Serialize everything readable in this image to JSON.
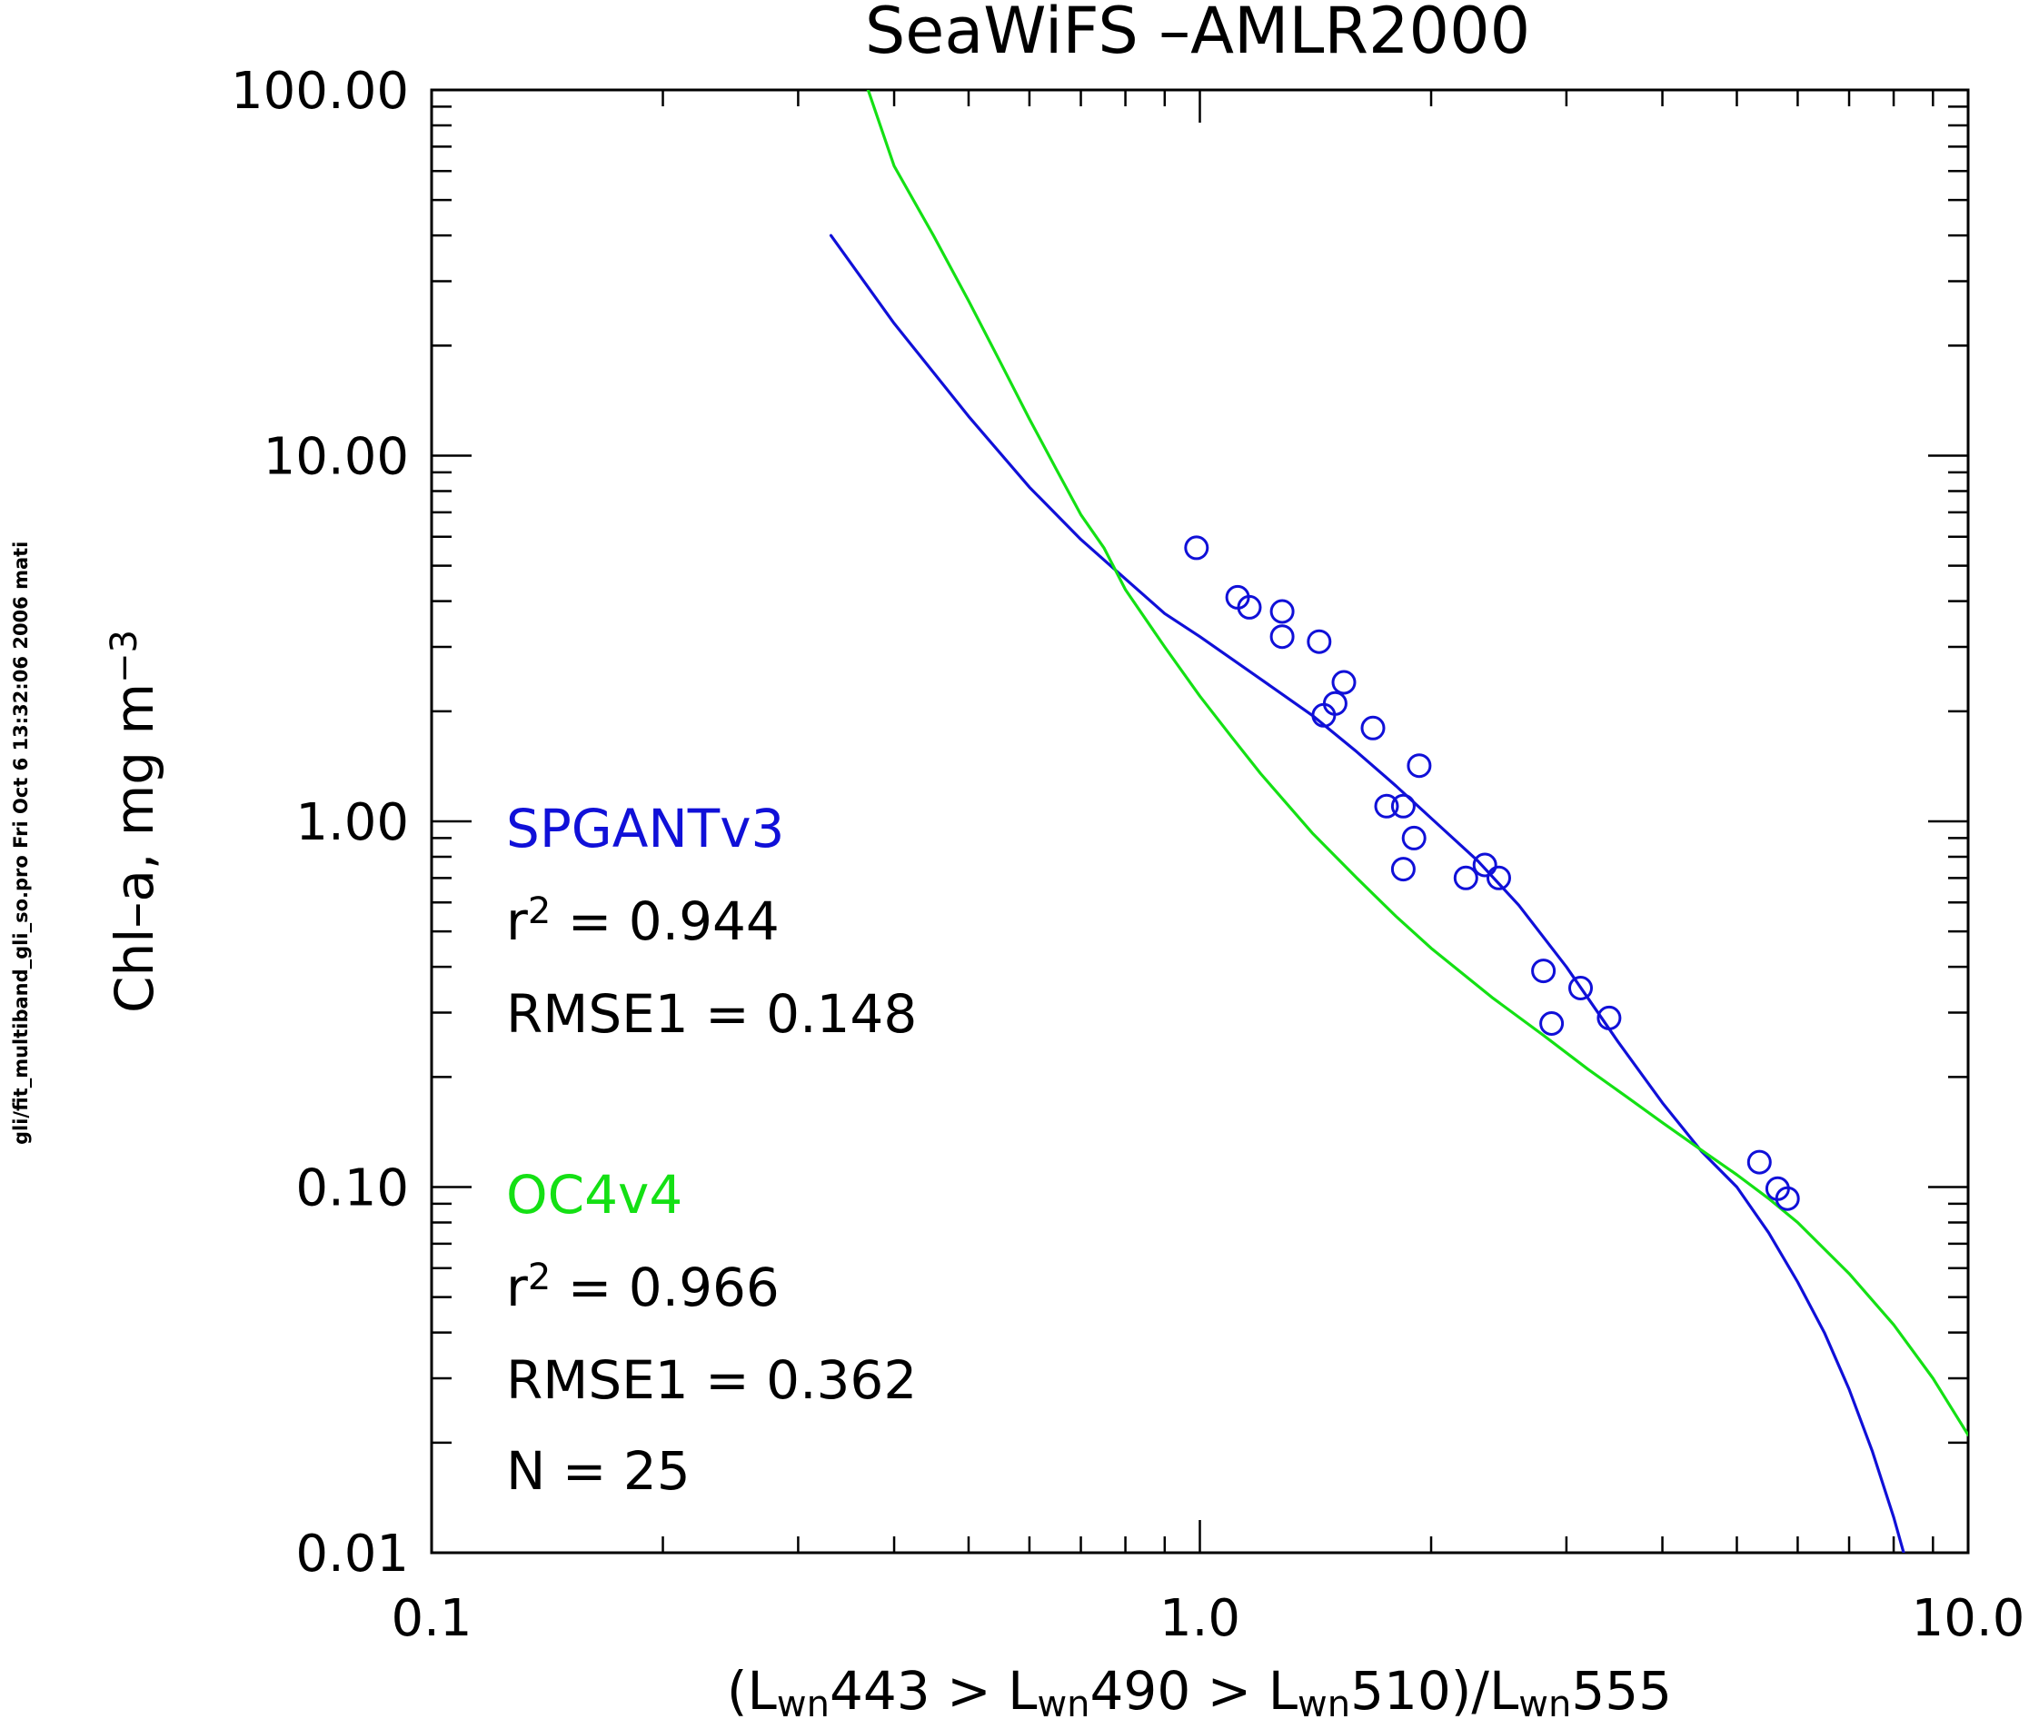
{
  "chart_data": {
    "type": "scatter",
    "title": "SeaWiFS  –AMLR2000",
    "xlabel": {
      "parts": [
        {
          "t": "(L"
        },
        {
          "t": "wn",
          "sub": true
        },
        {
          "t": "443 > L"
        },
        {
          "t": "wn",
          "sub": true
        },
        {
          "t": "490 > L"
        },
        {
          "t": "wn",
          "sub": true
        },
        {
          "t": "510)/L"
        },
        {
          "t": "wn",
          "sub": true
        },
        {
          "t": "555"
        }
      ]
    },
    "ylabel": {
      "parts": [
        {
          "t": "Chl–a, mg m"
        },
        {
          "t": "−3",
          "sup": true
        }
      ]
    },
    "x_scale": "log",
    "y_scale": "log",
    "xlim": [
      0.1,
      10.0
    ],
    "ylim": [
      0.01,
      100.0
    ],
    "xticks": [
      {
        "value": 0.1,
        "label": "0.1"
      },
      {
        "value": 1.0,
        "label": "1.0"
      },
      {
        "value": 10.0,
        "label": "10.0"
      }
    ],
    "yticks": [
      {
        "value": 0.01,
        "label": "0.01"
      },
      {
        "value": 0.1,
        "label": "0.10"
      },
      {
        "value": 1.0,
        "label": "1.00"
      },
      {
        "value": 10.0,
        "label": "10.00"
      },
      {
        "value": 100.0,
        "label": "100.00"
      }
    ],
    "grid": false,
    "points": {
      "color": "#1010d8",
      "x": [
        0.99,
        1.12,
        1.16,
        1.28,
        1.28,
        1.43,
        1.45,
        1.5,
        1.54,
        1.68,
        1.75,
        1.84,
        1.9,
        1.93,
        1.84,
        2.22,
        2.35,
        2.45,
        2.8,
        2.87,
        3.13,
        3.41,
        5.35,
        5.65,
        5.82
      ],
      "y": [
        5.6,
        4.1,
        3.85,
        3.75,
        3.2,
        3.1,
        1.95,
        2.1,
        2.4,
        1.8,
        1.1,
        1.1,
        0.9,
        1.42,
        0.74,
        0.7,
        0.76,
        0.7,
        0.39,
        0.28,
        0.35,
        0.29,
        0.117,
        0.099,
        0.093
      ]
    },
    "series": [
      {
        "name": "SPGANTv3",
        "color": "#1010d8",
        "x": [
          0.331,
          0.4,
          0.5,
          0.6,
          0.7,
          0.8,
          0.9,
          1.0,
          1.2,
          1.4,
          1.6,
          1.8,
          2.0,
          2.3,
          2.6,
          3.0,
          3.5,
          4.0,
          4.5,
          5.0,
          5.5,
          6.0,
          6.5,
          7.0,
          7.5,
          8.0,
          8.3
        ],
        "y": [
          40,
          23,
          12.8,
          8.2,
          5.9,
          4.6,
          3.7,
          3.2,
          2.45,
          1.95,
          1.55,
          1.25,
          1.02,
          0.78,
          0.59,
          0.4,
          0.25,
          0.17,
          0.125,
          0.1,
          0.075,
          0.055,
          0.04,
          0.028,
          0.019,
          0.0125,
          0.0095
        ]
      },
      {
        "name": "OC4v4",
        "color": "#14e014",
        "x": [
          0.37,
          0.4,
          0.45,
          0.5,
          0.55,
          0.6,
          0.65,
          0.7,
          0.75,
          0.8,
          0.9,
          1.0,
          1.1,
          1.2,
          1.4,
          1.6,
          1.8,
          2.0,
          2.4,
          2.8,
          3.2,
          3.6,
          4.0,
          4.5,
          5.0,
          5.5,
          6.0,
          7.0,
          8.0,
          9.0,
          10.0
        ],
        "y": [
          100,
          62,
          40,
          26.5,
          18,
          12.6,
          9.2,
          6.9,
          5.6,
          4.3,
          3.0,
          2.2,
          1.7,
          1.35,
          0.93,
          0.7,
          0.55,
          0.45,
          0.33,
          0.26,
          0.21,
          0.176,
          0.15,
          0.126,
          0.108,
          0.093,
          0.08,
          0.058,
          0.042,
          0.03,
          0.021
        ]
      }
    ],
    "annotations": {
      "spgant": {
        "name": "SPGANTv3",
        "r2": [
          {
            "t": "r"
          },
          {
            "t": "2",
            "sup": true
          },
          {
            "t": " =  0.944"
          }
        ],
        "rmse": "RMSE1 =  0.148"
      },
      "oc4": {
        "name": "OC4v4",
        "r2": [
          {
            "t": "r"
          },
          {
            "t": "2",
            "sup": true
          },
          {
            "t": " =  0.966"
          }
        ],
        "rmse": "RMSE1 =  0.362",
        "n": "N =  25"
      }
    },
    "side_label": "gli/fit_multiband_gli_so.pro Fri Oct  6 13:32:06 2006 mati"
  }
}
